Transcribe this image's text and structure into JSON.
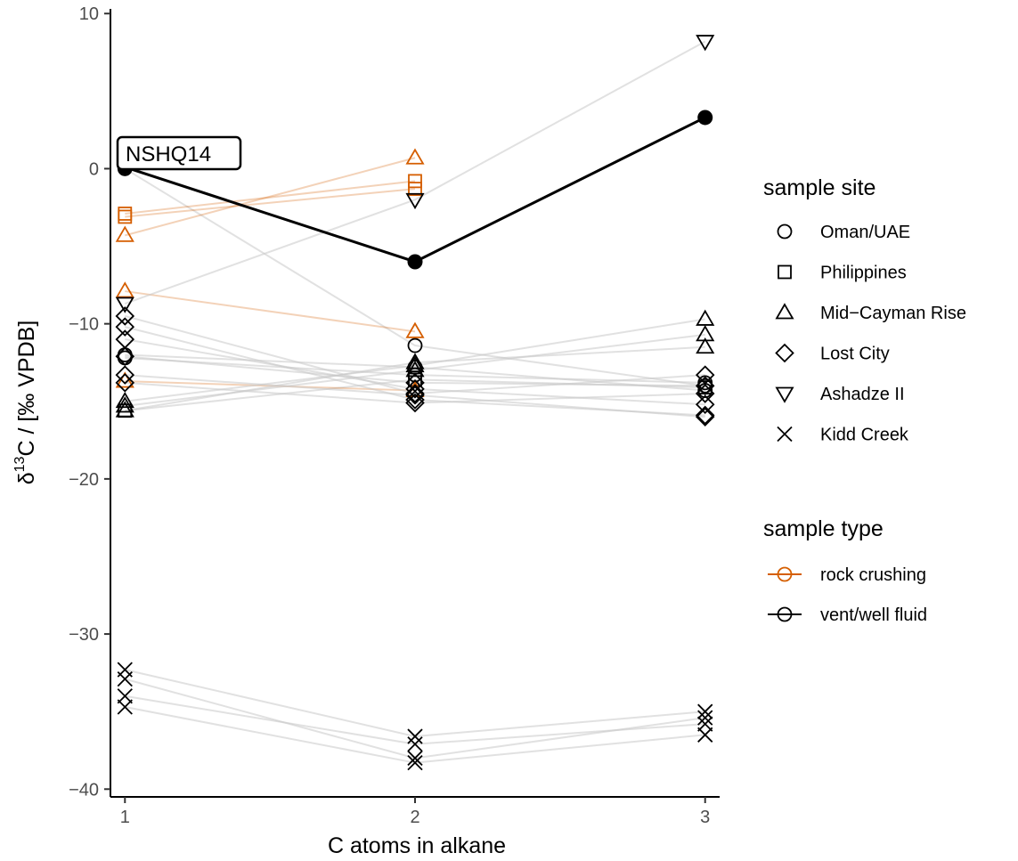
{
  "chart_data": {
    "type": "scatter",
    "xlabel": "C atoms in alkane",
    "ylabel": "δ13C / [‰ VPDB]",
    "ylabel_parts": {
      "delta": "δ",
      "superscript": "13",
      "rest": "C / [‰ VPDB]"
    },
    "x_ticks": [
      1,
      2,
      3
    ],
    "y_ticks": [
      10,
      0,
      -10,
      -20,
      -30,
      -40
    ],
    "xlim": [
      0.95,
      3.05
    ],
    "ylim": [
      -40.5,
      10.3
    ],
    "grid": false,
    "colors": {
      "rock crushing": "#d55e00",
      "vent/well fluid": "#000000",
      "connector": "#c8c8c8"
    },
    "highlight": {
      "label": "NSHQ14",
      "points": [
        [
          1,
          0.1
        ],
        [
          2,
          -6.0
        ],
        [
          3,
          3.3
        ]
      ]
    },
    "series": [
      {
        "site": "Oman/UAE",
        "type": "vent/well fluid",
        "points": [
          [
            1,
            0.0
          ],
          [
            2,
            -11.4
          ],
          [
            3,
            -14.0
          ]
        ]
      },
      {
        "site": "Oman/UAE",
        "type": "vent/well fluid",
        "points": [
          [
            1,
            -12.0
          ],
          [
            2,
            -12.8
          ],
          [
            3,
            -14.3
          ]
        ]
      },
      {
        "site": "Oman/UAE",
        "type": "vent/well fluid",
        "points": [
          [
            1,
            -12.2
          ],
          [
            2,
            -13.3
          ],
          [
            3,
            -13.8
          ]
        ]
      },
      {
        "site": "Philippines",
        "type": "rock crushing",
        "points": [
          [
            1,
            -2.9
          ],
          [
            2,
            -0.8
          ]
        ]
      },
      {
        "site": "Philippines",
        "type": "rock crushing",
        "points": [
          [
            1,
            -3.1
          ],
          [
            2,
            -1.3
          ]
        ]
      },
      {
        "site": "Philippines",
        "type": "vent/well fluid",
        "points": [
          [
            1,
            -15.6
          ],
          [
            2,
            -13.6
          ],
          [
            3,
            -14.1
          ]
        ]
      },
      {
        "site": "Mid-Cayman Rise",
        "type": "rock crushing",
        "points": [
          [
            1,
            -4.3
          ],
          [
            2,
            0.7
          ]
        ]
      },
      {
        "site": "Mid-Cayman Rise",
        "type": "rock crushing",
        "points": [
          [
            1,
            -7.9
          ],
          [
            2,
            -10.5
          ]
        ]
      },
      {
        "site": "Mid-Cayman Rise",
        "type": "rock crushing",
        "points": [
          [
            1,
            -13.7
          ],
          [
            2,
            -14.3
          ]
        ]
      },
      {
        "site": "Mid-Cayman Rise",
        "type": "vent/well fluid",
        "points": [
          [
            1,
            -15.0
          ],
          [
            2,
            -12.7
          ],
          [
            3,
            -9.7
          ]
        ]
      },
      {
        "site": "Mid-Cayman Rise",
        "type": "vent/well fluid",
        "points": [
          [
            1,
            -15.3
          ],
          [
            2,
            -13.0
          ],
          [
            3,
            -10.7
          ]
        ]
      },
      {
        "site": "Mid-Cayman Rise",
        "type": "vent/well fluid",
        "points": [
          [
            1,
            -15.6
          ],
          [
            2,
            -12.5
          ],
          [
            3,
            -11.5
          ]
        ]
      },
      {
        "site": "Lost City",
        "type": "vent/well fluid",
        "points": [
          [
            1,
            -9.5
          ],
          [
            2,
            -14.5
          ],
          [
            3,
            -13.3
          ]
        ]
      },
      {
        "site": "Lost City",
        "type": "vent/well fluid",
        "points": [
          [
            1,
            -10.2
          ],
          [
            2,
            -14.9
          ],
          [
            3,
            -15.9
          ]
        ]
      },
      {
        "site": "Lost City",
        "type": "vent/well fluid",
        "points": [
          [
            1,
            -11.0
          ],
          [
            2,
            -14.2
          ],
          [
            3,
            -15.2
          ]
        ]
      },
      {
        "site": "Lost City",
        "type": "vent/well fluid",
        "points": [
          [
            1,
            -12.1
          ],
          [
            2,
            -13.8
          ],
          [
            3,
            -14.0
          ]
        ]
      },
      {
        "site": "Lost City",
        "type": "vent/well fluid",
        "points": [
          [
            1,
            -13.3
          ],
          [
            2,
            -14.6
          ],
          [
            3,
            -16.0
          ]
        ]
      },
      {
        "site": "Lost City",
        "type": "vent/well fluid",
        "points": [
          [
            1,
            -13.8
          ],
          [
            2,
            -15.1
          ],
          [
            3,
            -14.5
          ]
        ]
      },
      {
        "site": "Ashadze II",
        "type": "vent/well fluid",
        "points": [
          [
            1,
            -8.7
          ],
          [
            2,
            -2.0
          ],
          [
            3,
            8.2
          ]
        ]
      },
      {
        "site": "Kidd Creek",
        "type": "vent/well fluid",
        "points": [
          [
            1,
            -32.3
          ],
          [
            2,
            -36.6
          ],
          [
            3,
            -35.0
          ]
        ]
      },
      {
        "site": "Kidd Creek",
        "type": "vent/well fluid",
        "points": [
          [
            1,
            -32.9
          ],
          [
            2,
            -38.0
          ],
          [
            3,
            -35.4
          ]
        ]
      },
      {
        "site": "Kidd Creek",
        "type": "vent/well fluid",
        "points": [
          [
            1,
            -34.0
          ],
          [
            2,
            -37.1
          ],
          [
            3,
            -35.8
          ]
        ]
      },
      {
        "site": "Kidd Creek",
        "type": "vent/well fluid",
        "points": [
          [
            1,
            -34.7
          ],
          [
            2,
            -38.3
          ],
          [
            3,
            -36.5
          ]
        ]
      }
    ],
    "legend": {
      "position": "right",
      "shape_title": "sample site",
      "shape_entries": [
        {
          "label": "Oman/UAE",
          "shape": "circle"
        },
        {
          "label": "Philippines",
          "shape": "square"
        },
        {
          "label": "Mid−Cayman Rise",
          "shape": "triangle-up"
        },
        {
          "label": "Lost City",
          "shape": "diamond"
        },
        {
          "label": "Ashadze II",
          "shape": "triangle-down"
        },
        {
          "label": "Kidd Creek",
          "shape": "cross"
        }
      ],
      "type_title": "sample type",
      "type_entries": [
        {
          "label": "rock crushing",
          "color": "#d55e00"
        },
        {
          "label": "vent/well fluid",
          "color": "#000000"
        }
      ]
    }
  }
}
